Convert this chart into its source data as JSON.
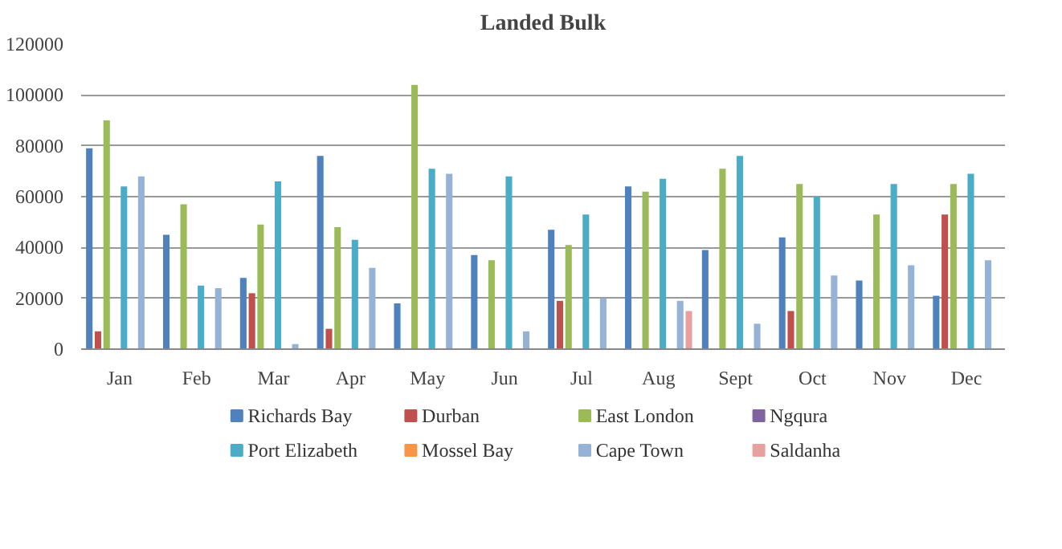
{
  "chart_data": {
    "type": "bar",
    "title": "Landed Bulk",
    "categories": [
      "Jan",
      "Feb",
      "Mar",
      "Apr",
      "May",
      "Jun",
      "Jul",
      "Aug",
      "Sept",
      "Oct",
      "Nov",
      "Dec"
    ],
    "series": [
      {
        "name": "Richards Bay",
        "color": "#4f81bd",
        "values": [
          79000,
          45000,
          28000,
          76000,
          18000,
          37000,
          47000,
          64000,
          39000,
          44000,
          27000,
          21000
        ]
      },
      {
        "name": "Durban",
        "color": "#c0504d",
        "values": [
          7000,
          0,
          22000,
          8000,
          0,
          0,
          19000,
          0,
          0,
          15000,
          0,
          53000
        ]
      },
      {
        "name": "East London",
        "color": "#9bbb59",
        "values": [
          90000,
          57000,
          49000,
          48000,
          104000,
          35000,
          41000,
          62000,
          71000,
          65000,
          53000,
          65000
        ]
      },
      {
        "name": "Ngqura",
        "color": "#8064a2",
        "values": [
          0,
          0,
          0,
          0,
          0,
          0,
          0,
          0,
          0,
          0,
          0,
          0
        ]
      },
      {
        "name": "Port Elizabeth",
        "color": "#4bacc6",
        "values": [
          64000,
          25000,
          66000,
          43000,
          71000,
          68000,
          53000,
          67000,
          76000,
          60000,
          65000,
          69000
        ]
      },
      {
        "name": "Mossel Bay",
        "color": "#f79646",
        "values": [
          0,
          0,
          0,
          0,
          0,
          0,
          0,
          0,
          0,
          0,
          0,
          0
        ]
      },
      {
        "name": "Cape Town",
        "color": "#95b3d7",
        "values": [
          68000,
          24000,
          2000,
          32000,
          69000,
          7000,
          20000,
          19000,
          10000,
          29000,
          33000,
          35000
        ]
      },
      {
        "name": "Saldanha",
        "color": "#e6a0a0",
        "values": [
          0,
          0,
          0,
          0,
          0,
          0,
          0,
          15000,
          0,
          0,
          0,
          0
        ]
      }
    ],
    "ylim": [
      0,
      120000
    ],
    "yticks": [
      0,
      20000,
      40000,
      60000,
      80000,
      100000,
      120000
    ],
    "grid": "y",
    "legend": "bottom"
  }
}
